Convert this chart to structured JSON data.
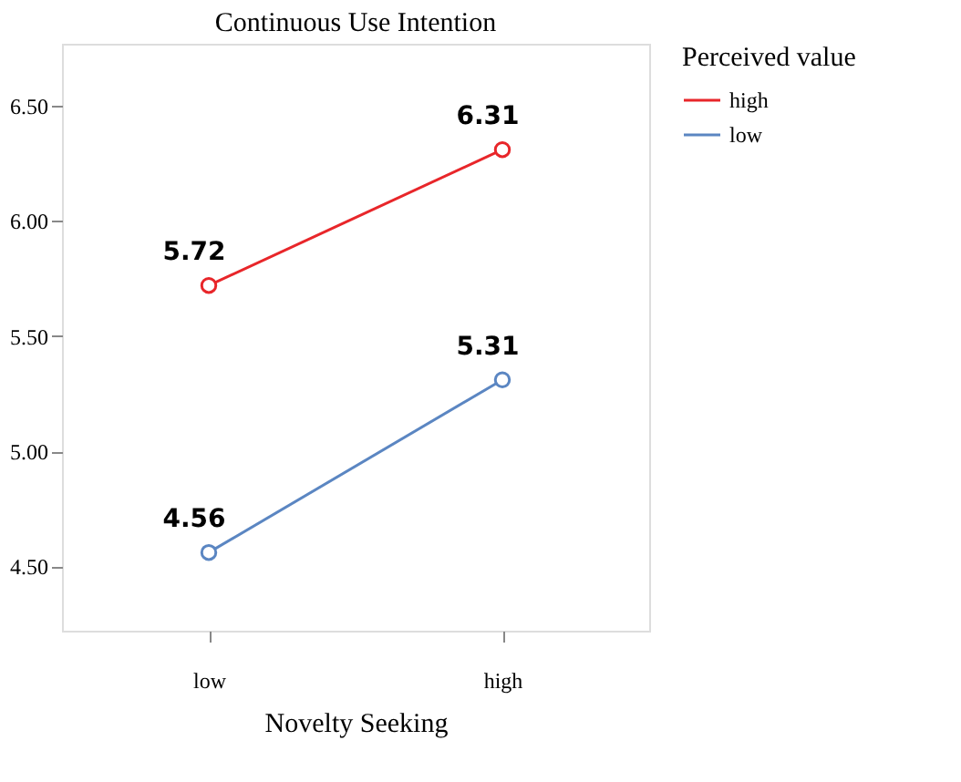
{
  "chart_data": {
    "type": "line",
    "title": "Continuous Use Intention",
    "xlabel": "Novelty Seeking",
    "legend_title": "Perceived value",
    "categories": [
      "low",
      "high"
    ],
    "series": [
      {
        "name": "high",
        "color": "#e8262a",
        "values": [
          5.72,
          6.31
        ]
      },
      {
        "name": "low",
        "color": "#5b86c2",
        "values": [
          4.56,
          5.31
        ]
      }
    ],
    "ylim": [
      4.22,
      6.77
    ],
    "yticks": [
      {
        "value": 4.5,
        "label": "4.50"
      },
      {
        "value": 5.0,
        "label": "5.00"
      },
      {
        "value": 5.5,
        "label": "5.50"
      },
      {
        "value": 6.0,
        "label": "6.00"
      },
      {
        "value": 6.5,
        "label": "6.50"
      }
    ],
    "grid": false,
    "legend": "top right",
    "marker": "circle",
    "line_style": "solid",
    "data_labels": true
  }
}
